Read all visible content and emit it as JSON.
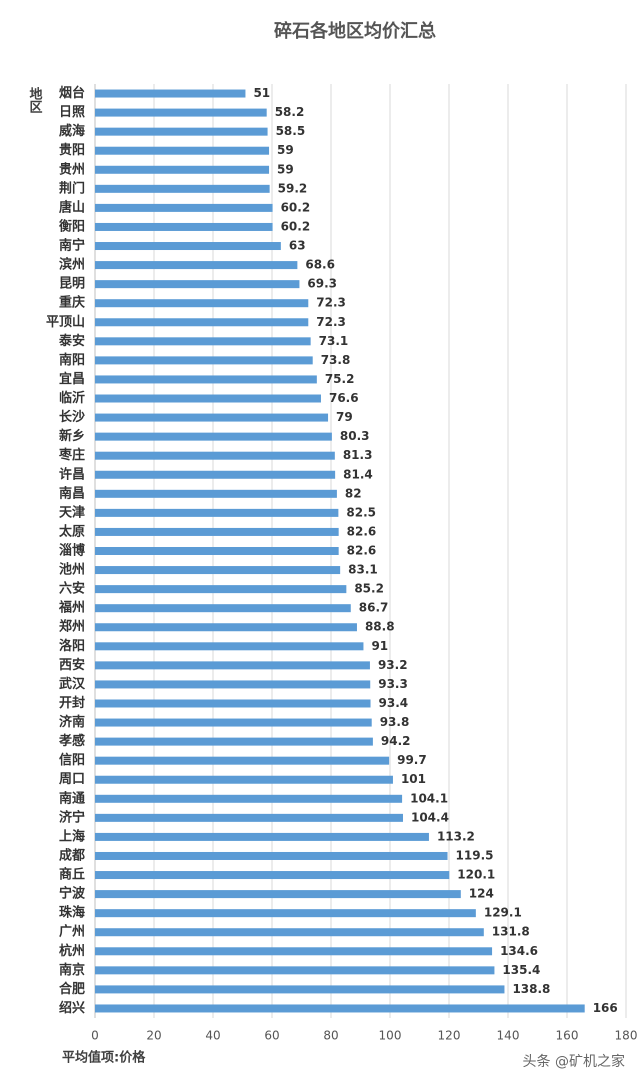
{
  "chart_data": {
    "type": "bar",
    "orientation": "horizontal",
    "title": "碎石各地区均价汇总",
    "y_label": "地区",
    "x_label": "平均值项:价格",
    "watermark": "头条 @矿机之家",
    "categories": [
      "烟台",
      "日照",
      "威海",
      "贵阳",
      "贵州",
      "荆门",
      "唐山",
      "衡阳",
      "南宁",
      "滨州",
      "昆明",
      "重庆",
      "平顶山",
      "泰安",
      "南阳",
      "宜昌",
      "临沂",
      "长沙",
      "新乡",
      "枣庄",
      "许昌",
      "南昌",
      "天津",
      "太原",
      "淄博",
      "池州",
      "六安",
      "福州",
      "郑州",
      "洛阳",
      "西安",
      "武汉",
      "开封",
      "济南",
      "孝感",
      "信阳",
      "周口",
      "南通",
      "济宁",
      "上海",
      "成都",
      "商丘",
      "宁波",
      "珠海",
      "广州",
      "杭州",
      "南京",
      "合肥",
      "绍兴"
    ],
    "values": [
      51,
      58.2,
      58.5,
      59,
      59,
      59.2,
      60.2,
      60.2,
      63,
      68.6,
      69.3,
      72.3,
      72.3,
      73.1,
      73.8,
      75.2,
      76.6,
      79,
      80.3,
      81.3,
      81.4,
      82,
      82.5,
      82.6,
      82.6,
      83.1,
      85.2,
      86.7,
      88.8,
      91,
      93.2,
      93.3,
      93.4,
      93.8,
      94.2,
      99.7,
      101,
      104.1,
      104.4,
      113.2,
      119.5,
      120.1,
      124,
      129.1,
      131.8,
      134.6,
      135.4,
      138.8,
      166
    ],
    "color": "#5b9bd5",
    "xlim": [
      0,
      180
    ],
    "xticks": [
      0,
      20,
      40,
      60,
      80,
      100,
      120,
      140,
      160,
      180
    ],
    "grid": true
  }
}
